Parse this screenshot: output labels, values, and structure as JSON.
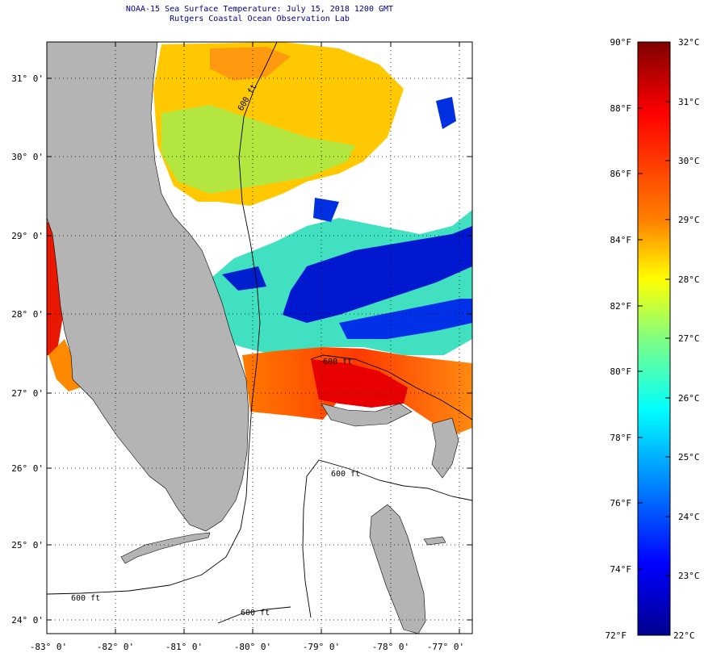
{
  "header": {
    "title": "NOAA-15 Sea Surface Temperature:  July 15, 2018 1200 GMT",
    "subtitle": "Rutgers Coastal Ocean Observation Lab"
  },
  "map": {
    "lat_labels": [
      "31° 0'",
      "30° 0'",
      "29° 0'",
      "28° 0'",
      "27° 0'",
      "26° 0'",
      "25° 0'",
      "24° 0'"
    ],
    "lon_labels": [
      "-83° 0'",
      "-82° 0'",
      "-81° 0'",
      "-80° 0'",
      "-79° 0'",
      "-78° 0'",
      "-77° 0'"
    ],
    "contour_labels": [
      "600 ft",
      "600 ft",
      "600 ft",
      "600 ft",
      "600 ft"
    ],
    "colors": {
      "land": "#b4b4b4",
      "ocean": "#ffffff",
      "grid": "#000000"
    }
  },
  "colorbar": {
    "f_labels": [
      "90°F",
      "88°F",
      "86°F",
      "84°F",
      "82°F",
      "80°F",
      "78°F",
      "76°F",
      "74°F",
      "72°F"
    ],
    "c_labels": [
      "32°C",
      "31°C",
      "30°C",
      "29°C",
      "28°C",
      "27°C",
      "26°C",
      "25°C",
      "24°C",
      "23°C",
      "22°C"
    ],
    "stops": [
      "#7f0000",
      "#ff0000",
      "#ff8000",
      "#ffff00",
      "#80ff80",
      "#00ffff",
      "#0080ff",
      "#0000ff",
      "#00008f"
    ]
  }
}
